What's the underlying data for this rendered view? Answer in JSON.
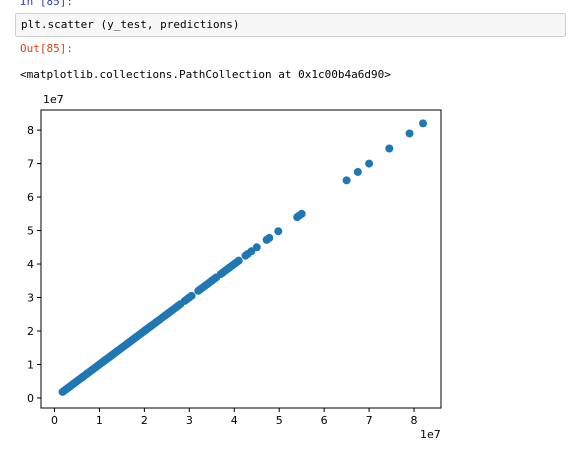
{
  "notebook": {
    "input_prompt": "In [85]:",
    "code": "plt.scatter (y_test, predictions)",
    "output_prompt": "Out[85]:",
    "output_text": "<matplotlib.collections.PathCollection at 0x1c00b4a6d90>"
  },
  "colors": {
    "marker": "#1f77b4",
    "input_prompt": "#303f9f",
    "output_prompt": "#d84315"
  },
  "chart_data": {
    "type": "scatter",
    "title": "",
    "xlabel": "",
    "ylabel": "",
    "x_offset_label": "1e7",
    "y_offset_label": "1e7",
    "x_ticks": [
      0,
      1,
      2,
      3,
      4,
      5,
      6,
      7,
      8
    ],
    "y_ticks": [
      0,
      1,
      2,
      3,
      4,
      5,
      6,
      7,
      8
    ],
    "xlim": [
      -0.3,
      8.6
    ],
    "ylim": [
      -0.3,
      8.6
    ],
    "grid": false,
    "points": {
      "x": [
        0.18,
        0.22,
        0.25,
        0.28,
        0.3,
        0.33,
        0.36,
        0.4,
        0.43,
        0.46,
        0.5,
        0.53,
        0.56,
        0.6,
        0.63,
        0.66,
        0.7,
        0.73,
        0.76,
        0.8,
        0.83,
        0.86,
        0.9,
        0.93,
        0.96,
        1.0,
        1.03,
        1.06,
        1.1,
        1.13,
        1.16,
        1.2,
        1.23,
        1.26,
        1.3,
        1.33,
        1.36,
        1.4,
        1.43,
        1.46,
        1.5,
        1.53,
        1.56,
        1.6,
        1.63,
        1.66,
        1.7,
        1.73,
        1.76,
        1.8,
        1.83,
        1.86,
        1.9,
        1.93,
        1.96,
        2.0,
        2.03,
        2.06,
        2.1,
        2.13,
        2.16,
        2.2,
        2.25,
        2.3,
        2.35,
        2.4,
        2.45,
        2.5,
        2.55,
        2.6,
        2.65,
        2.7,
        2.75,
        2.8,
        2.9,
        2.95,
        3.0,
        3.05,
        3.2,
        3.25,
        3.3,
        3.35,
        3.4,
        3.45,
        3.5,
        3.55,
        3.6,
        3.7,
        3.75,
        3.8,
        3.85,
        3.9,
        3.95,
        4.0,
        4.05,
        4.1,
        4.25,
        4.3,
        4.38,
        4.5,
        4.72,
        4.78,
        4.98,
        5.4,
        5.45,
        5.5,
        6.5,
        6.75,
        7.0,
        7.45,
        7.9,
        8.2
      ],
      "y": [
        0.18,
        0.22,
        0.25,
        0.28,
        0.3,
        0.33,
        0.36,
        0.4,
        0.43,
        0.46,
        0.5,
        0.53,
        0.56,
        0.6,
        0.63,
        0.66,
        0.7,
        0.73,
        0.76,
        0.8,
        0.83,
        0.86,
        0.9,
        0.93,
        0.96,
        1.0,
        1.03,
        1.06,
        1.1,
        1.13,
        1.16,
        1.2,
        1.23,
        1.26,
        1.3,
        1.33,
        1.36,
        1.4,
        1.43,
        1.46,
        1.5,
        1.53,
        1.56,
        1.6,
        1.63,
        1.66,
        1.7,
        1.73,
        1.76,
        1.8,
        1.83,
        1.86,
        1.9,
        1.93,
        1.96,
        2.0,
        2.03,
        2.06,
        2.1,
        2.13,
        2.16,
        2.2,
        2.25,
        2.3,
        2.35,
        2.4,
        2.45,
        2.5,
        2.55,
        2.6,
        2.65,
        2.7,
        2.75,
        2.8,
        2.9,
        2.95,
        3.0,
        3.05,
        3.2,
        3.25,
        3.3,
        3.35,
        3.4,
        3.45,
        3.5,
        3.55,
        3.6,
        3.7,
        3.75,
        3.8,
        3.85,
        3.9,
        3.95,
        4.0,
        4.05,
        4.1,
        4.25,
        4.3,
        4.38,
        4.5,
        4.72,
        4.78,
        4.98,
        5.4,
        5.45,
        5.5,
        6.5,
        6.75,
        7.0,
        7.45,
        7.9,
        8.2
      ]
    }
  }
}
